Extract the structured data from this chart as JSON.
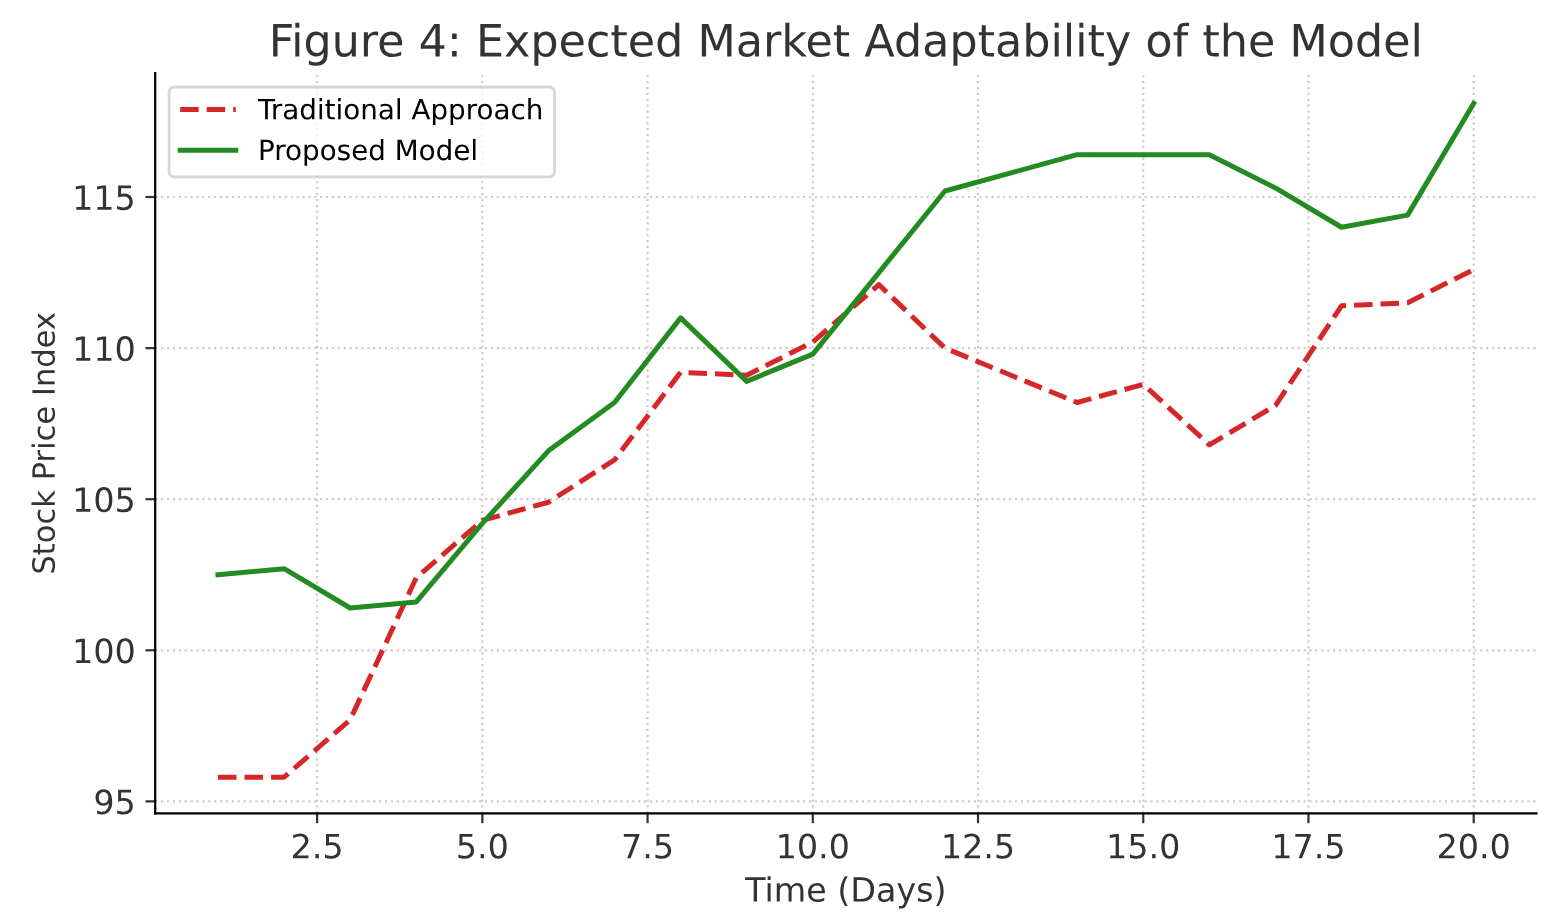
{
  "chart_data": {
    "type": "line",
    "title": "Figure 4: Expected Market Adaptability of the Model",
    "xlabel": "Time (Days)",
    "ylabel": "Stock Price Index",
    "x": [
      1,
      2,
      3,
      4,
      5,
      6,
      7,
      8,
      9,
      10,
      11,
      12,
      13,
      14,
      15,
      16,
      17,
      18,
      19,
      20
    ],
    "series": [
      {
        "name": "Traditional Approach",
        "color": "#d62728",
        "line_style": "dashed",
        "values": [
          95.8,
          95.8,
          97.7,
          102.4,
          104.3,
          104.9,
          106.3,
          109.2,
          109.1,
          110.2,
          112.1,
          110.0,
          109.1,
          108.2,
          108.8,
          106.8,
          108.1,
          111.4,
          111.5,
          112.6
        ]
      },
      {
        "name": "Proposed Model",
        "color": "#228b22",
        "line_style": "solid",
        "values": [
          102.5,
          102.7,
          101.4,
          101.6,
          104.2,
          106.6,
          108.2,
          111.0,
          108.9,
          109.8,
          112.5,
          115.2,
          115.8,
          116.4,
          116.4,
          116.4,
          115.3,
          114.0,
          114.4,
          118.1
        ]
      }
    ],
    "xlim": [
      0.05,
      20.95
    ],
    "ylim": [
      94.6,
      119.1
    ],
    "xticks": [
      {
        "value": 2.5,
        "label": "2.5"
      },
      {
        "value": 5,
        "label": "5.0"
      },
      {
        "value": 7.5,
        "label": "7.5"
      },
      {
        "value": 10,
        "label": "10.0"
      },
      {
        "value": 12.5,
        "label": "12.5"
      },
      {
        "value": 15,
        "label": "15.0"
      },
      {
        "value": 17.5,
        "label": "17.5"
      },
      {
        "value": 20,
        "label": "20.0"
      }
    ],
    "yticks": [
      95,
      100,
      105,
      110,
      115
    ],
    "grid": true,
    "legend": "top left",
    "marker": "none"
  }
}
